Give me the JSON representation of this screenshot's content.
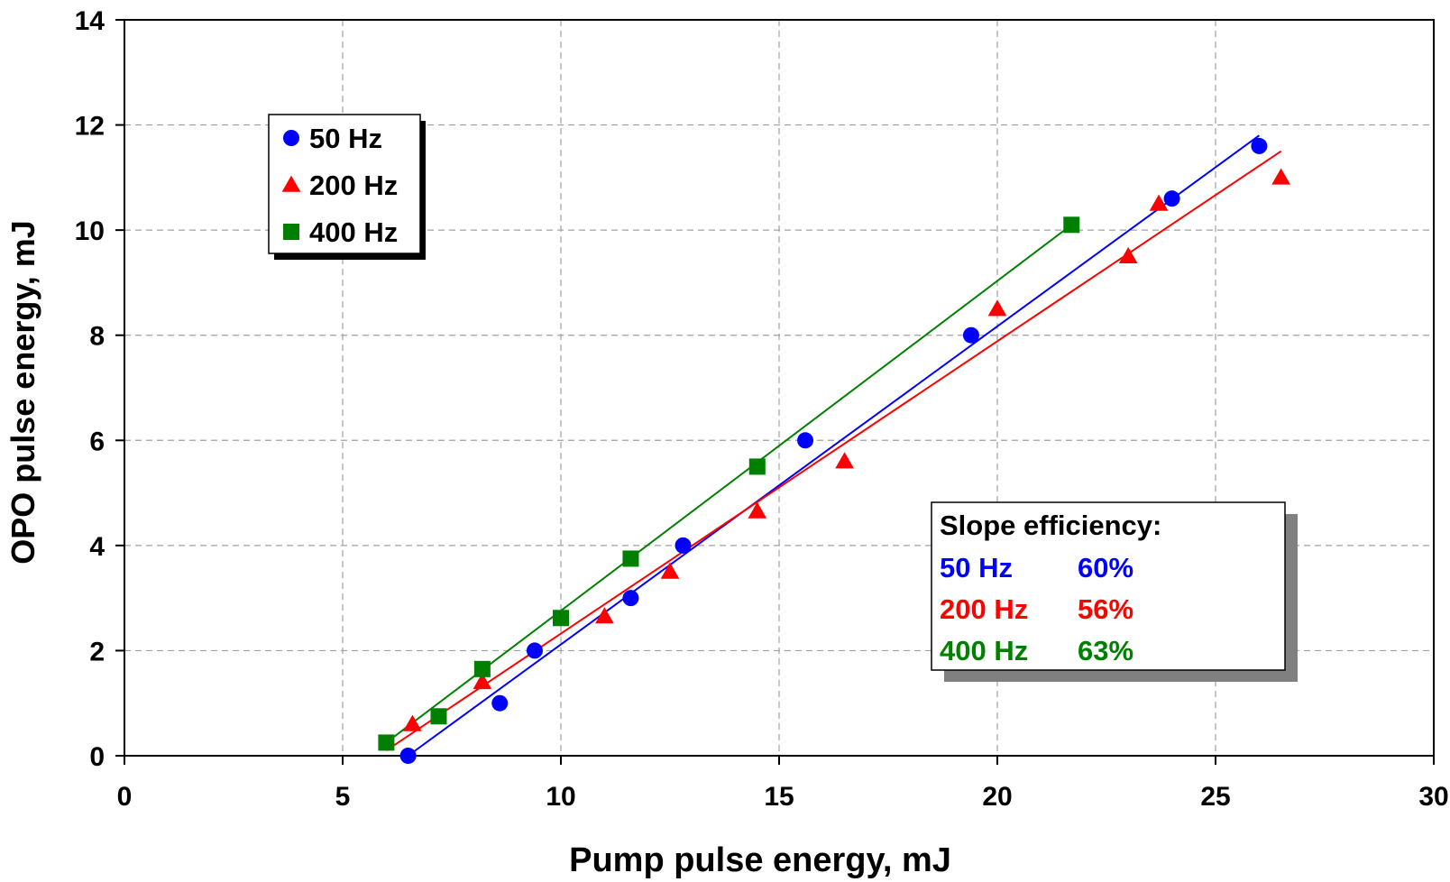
{
  "chart_data": {
    "type": "scatter",
    "xlabel": "Pump pulse energy, mJ",
    "ylabel": "OPO pulse energy, mJ",
    "xlim": [
      0,
      30
    ],
    "ylim": [
      0,
      14
    ],
    "xticks": [
      0,
      5,
      10,
      15,
      20,
      25,
      30
    ],
    "yticks": [
      0,
      2,
      4,
      6,
      8,
      10,
      12,
      14
    ],
    "grid": true,
    "legend_position": "top-left",
    "series": [
      {
        "name": "50 Hz",
        "color": "#0000ff",
        "marker": "circle",
        "points": [
          [
            6.5,
            0.0
          ],
          [
            8.6,
            1.0
          ],
          [
            9.4,
            2.0
          ],
          [
            11.6,
            3.0
          ],
          [
            12.8,
            4.0
          ],
          [
            15.6,
            6.0
          ],
          [
            19.4,
            8.0
          ],
          [
            24.0,
            10.6
          ],
          [
            26.0,
            11.6
          ]
        ],
        "fit": [
          [
            6.5,
            0.0
          ],
          [
            26.0,
            11.8
          ]
        ]
      },
      {
        "name": "200 Hz",
        "color": "#ff0000",
        "marker": "triangle",
        "points": [
          [
            6.6,
            0.6
          ],
          [
            8.2,
            1.4
          ],
          [
            11.0,
            2.65
          ],
          [
            12.5,
            3.5
          ],
          [
            14.5,
            4.65
          ],
          [
            16.5,
            5.6
          ],
          [
            20.0,
            8.5
          ],
          [
            23.0,
            9.5
          ],
          [
            23.7,
            10.5
          ],
          [
            26.5,
            11.0
          ]
        ],
        "fit": [
          [
            6.0,
            0.1
          ],
          [
            26.5,
            11.5
          ]
        ]
      },
      {
        "name": "400 Hz",
        "color": "#008000",
        "marker": "square",
        "points": [
          [
            6.0,
            0.25
          ],
          [
            7.2,
            0.75
          ],
          [
            8.2,
            1.65
          ],
          [
            10.0,
            2.62
          ],
          [
            11.6,
            3.75
          ],
          [
            14.5,
            5.5
          ],
          [
            21.7,
            10.1
          ]
        ],
        "fit": [
          [
            6.0,
            0.25
          ],
          [
            21.7,
            10.1
          ]
        ]
      }
    ],
    "annotation": {
      "title": "Slope efficiency:",
      "rows": [
        {
          "label": "50 Hz",
          "value": "60%",
          "color": "#0000ff"
        },
        {
          "label": "200 Hz",
          "value": "56%",
          "color": "#ff0000"
        },
        {
          "label": "400 Hz",
          "value": "63%",
          "color": "#008000"
        }
      ]
    }
  }
}
